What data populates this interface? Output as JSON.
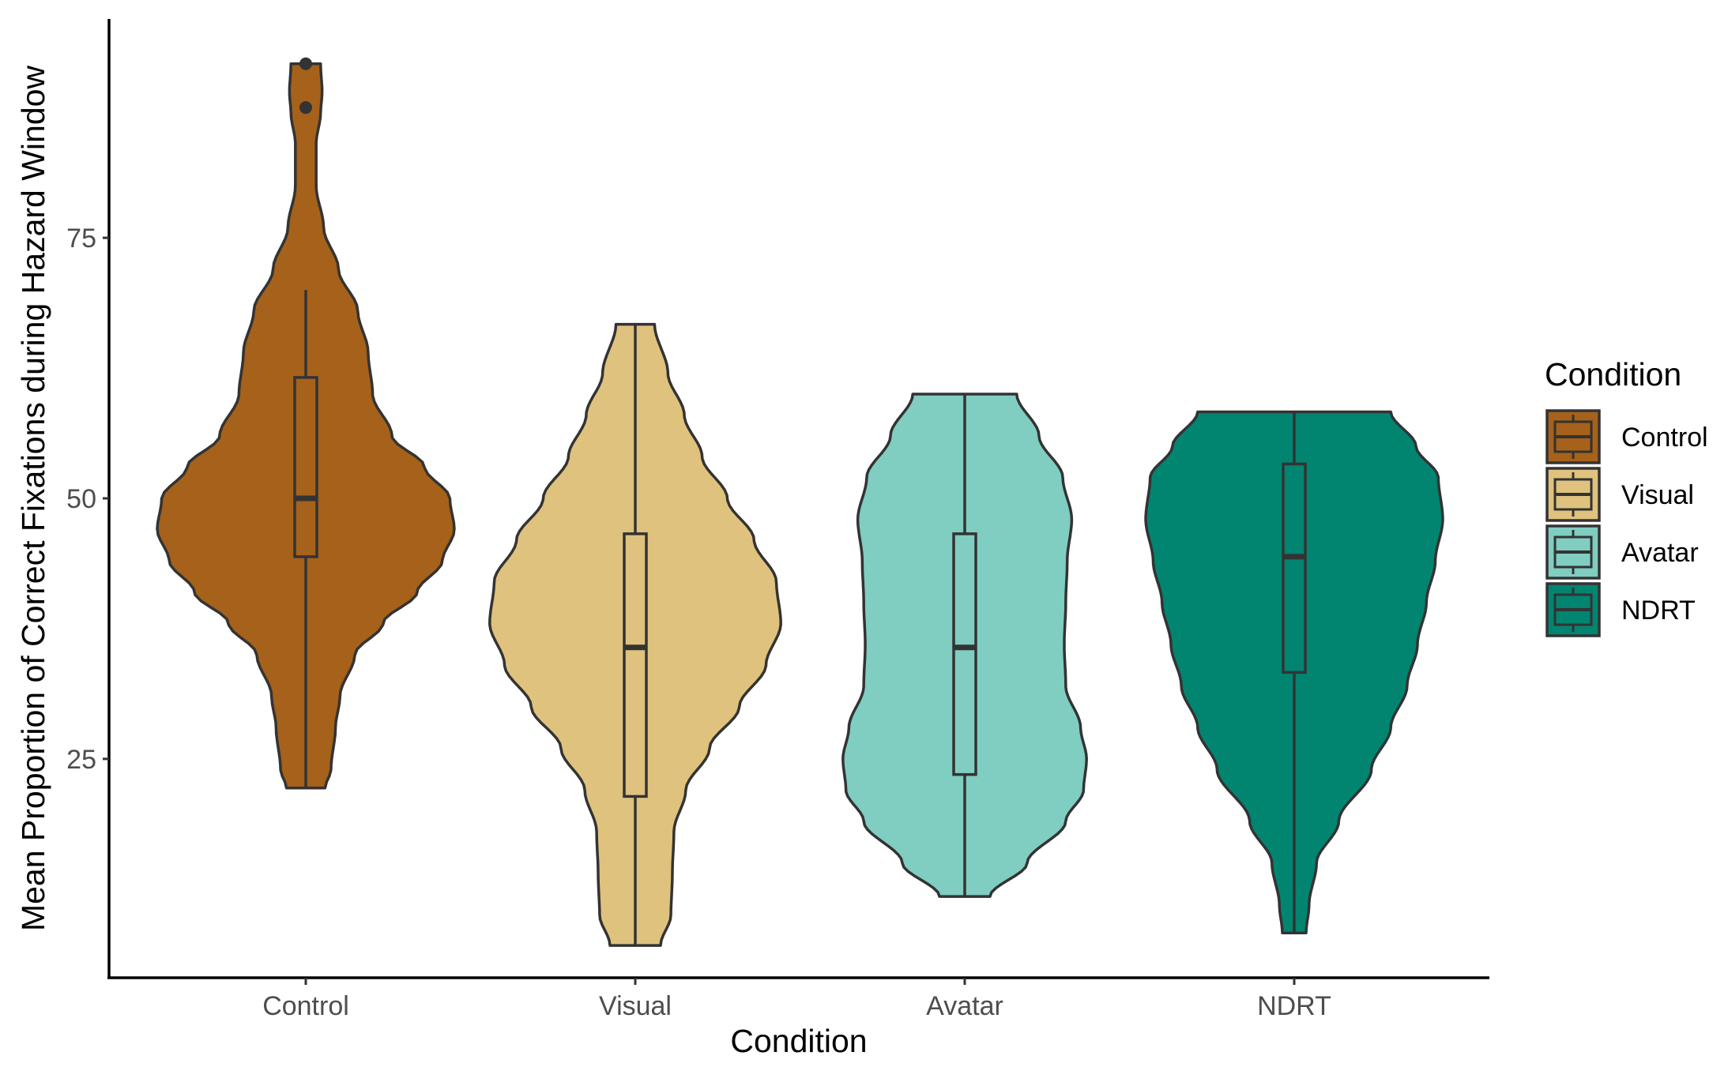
{
  "chart_data": {
    "type": "violin",
    "xlabel": "Condition",
    "ylabel": "Mean Proportion of Correct Fixations during Hazard Window",
    "ylim": [
      4.0,
      96.0
    ],
    "yticks": [
      25,
      50,
      75
    ],
    "categories": [
      "Control",
      "Visual",
      "Avatar",
      "NDRT"
    ],
    "legend": {
      "title": "Condition",
      "placement": "right",
      "entries": [
        "Control",
        "Visual",
        "Avatar",
        "NDRT"
      ]
    },
    "series": [
      {
        "name": "Control",
        "color": "#A6611A",
        "min": 22.2,
        "max": 91.7,
        "box": {
          "q1": 44.4,
          "median": 50.0,
          "q3": 61.6,
          "whisker_low": 22.2,
          "whisker_high": 70.0
        },
        "outliers": [
          91.7,
          87.5
        ],
        "density_profile": [
          [
            22.2,
            0.13
          ],
          [
            24,
            0.17
          ],
          [
            28,
            0.2
          ],
          [
            31,
            0.23
          ],
          [
            35,
            0.33
          ],
          [
            38,
            0.52
          ],
          [
            41,
            0.75
          ],
          [
            44,
            0.92
          ],
          [
            47,
            1.0
          ],
          [
            50,
            0.97
          ],
          [
            53,
            0.8
          ],
          [
            56,
            0.58
          ],
          [
            60,
            0.45
          ],
          [
            64,
            0.42
          ],
          [
            68,
            0.35
          ],
          [
            72,
            0.22
          ],
          [
            76,
            0.12
          ],
          [
            80,
            0.07
          ],
          [
            84,
            0.07
          ],
          [
            87,
            0.1
          ],
          [
            89,
            0.11
          ],
          [
            91.7,
            0.1
          ]
        ]
      },
      {
        "name": "Visual",
        "color": "#DFC27D",
        "min": 7.1,
        "max": 66.7,
        "box": {
          "q1": 21.4,
          "median": 35.7,
          "q3": 46.6,
          "whisker_low": 7.1,
          "whisker_high": 66.7
        },
        "outliers": [],
        "density_profile": [
          [
            7.1,
            0.17
          ],
          [
            10,
            0.24
          ],
          [
            14,
            0.25
          ],
          [
            18,
            0.26
          ],
          [
            22,
            0.34
          ],
          [
            26,
            0.5
          ],
          [
            30,
            0.7
          ],
          [
            34,
            0.88
          ],
          [
            38,
            0.98
          ],
          [
            42,
            0.95
          ],
          [
            46,
            0.8
          ],
          [
            50,
            0.62
          ],
          [
            54,
            0.45
          ],
          [
            58,
            0.33
          ],
          [
            62,
            0.22
          ],
          [
            66.7,
            0.13
          ]
        ]
      },
      {
        "name": "Avatar",
        "color": "#80CDC1",
        "min": 11.8,
        "max": 60.0,
        "box": {
          "q1": 23.5,
          "median": 35.7,
          "q3": 46.6,
          "whisker_low": 11.8,
          "whisker_high": 60.0
        },
        "outliers": [],
        "density_profile": [
          [
            11.8,
            0.17
          ],
          [
            15,
            0.42
          ],
          [
            19,
            0.68
          ],
          [
            22,
            0.8
          ],
          [
            25,
            0.82
          ],
          [
            28,
            0.78
          ],
          [
            32,
            0.68
          ],
          [
            36,
            0.67
          ],
          [
            40,
            0.68
          ],
          [
            44,
            0.69
          ],
          [
            48,
            0.72
          ],
          [
            52,
            0.66
          ],
          [
            56,
            0.5
          ],
          [
            60,
            0.35
          ]
        ]
      },
      {
        "name": "NDRT",
        "color": "#018571",
        "min": 8.3,
        "max": 58.3,
        "box": {
          "q1": 33.3,
          "median": 44.4,
          "q3": 53.3,
          "whisker_low": 8.3,
          "whisker_high": 58.3
        },
        "outliers": [],
        "density_profile": [
          [
            8.3,
            0.08
          ],
          [
            11,
            0.1
          ],
          [
            15,
            0.15
          ],
          [
            19,
            0.3
          ],
          [
            24,
            0.52
          ],
          [
            28,
            0.65
          ],
          [
            32,
            0.76
          ],
          [
            36,
            0.83
          ],
          [
            40,
            0.89
          ],
          [
            44,
            0.95
          ],
          [
            48,
            1.0
          ],
          [
            52,
            0.97
          ],
          [
            55,
            0.82
          ],
          [
            58.3,
            0.65
          ]
        ]
      }
    ]
  }
}
